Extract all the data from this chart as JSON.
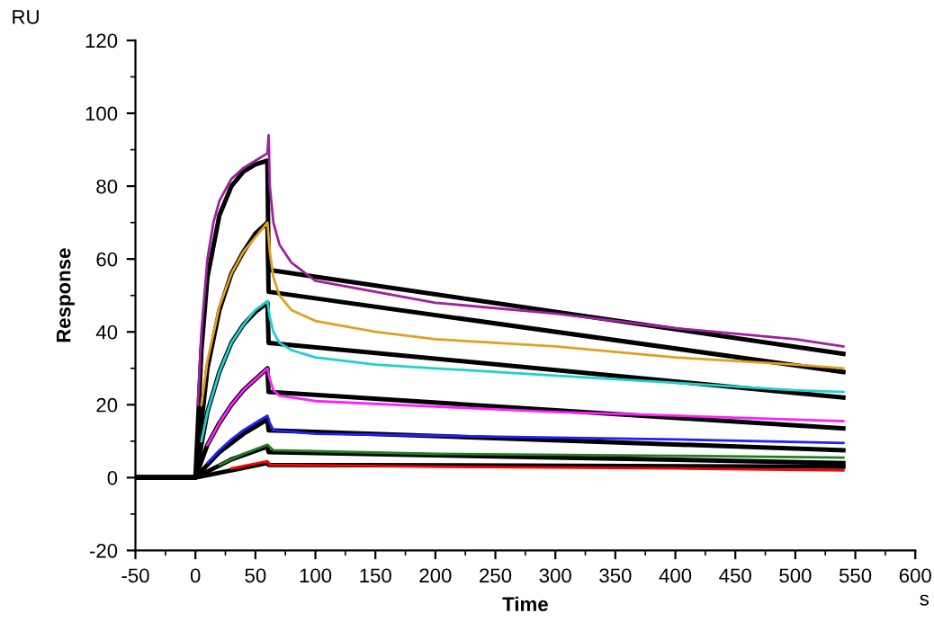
{
  "chart_data": {
    "type": "line",
    "xlabel": "Time",
    "ylabel": "Response",
    "annotations": [
      "RU",
      "s"
    ],
    "xlim": [
      -50,
      600
    ],
    "ylim": [
      -20,
      120
    ],
    "xticks": [
      -50,
      0,
      50,
      100,
      150,
      200,
      250,
      300,
      350,
      400,
      450,
      500,
      550,
      600
    ],
    "yticks": [
      -20,
      0,
      20,
      40,
      60,
      80,
      100,
      120
    ],
    "grid": false,
    "legend": false,
    "marker": "none",
    "line_style": "solid",
    "series": [
      {
        "color": "#a020a0",
        "x": [
          2,
          5,
          10,
          15,
          20,
          30,
          40,
          50,
          60,
          61,
          62,
          65,
          70,
          80,
          100,
          150,
          200,
          300,
          400,
          500,
          540
        ],
        "values": [
          20,
          40,
          60,
          70,
          76,
          82,
          85,
          87,
          89,
          94,
          80,
          70,
          64,
          59,
          54,
          51,
          48,
          45,
          41,
          38,
          36
        ]
      },
      {
        "color": "#e0a020",
        "x": [
          5,
          10,
          20,
          30,
          40,
          50,
          60,
          62,
          65,
          70,
          80,
          100,
          150,
          200,
          300,
          400,
          500,
          540
        ],
        "values": [
          20,
          32,
          47,
          56,
          62,
          66,
          70,
          62,
          55,
          50,
          46,
          43,
          40,
          38,
          36,
          33,
          31,
          30
        ]
      },
      {
        "color": "#20d0d0",
        "x": [
          5,
          10,
          20,
          30,
          40,
          50,
          60,
          62,
          65,
          70,
          80,
          100,
          150,
          200,
          300,
          400,
          500,
          540
        ],
        "values": [
          10,
          18,
          29,
          37,
          42,
          46,
          48.5,
          44,
          40,
          37,
          35,
          33,
          31,
          30,
          28,
          26,
          24,
          23.5
        ]
      },
      {
        "color": "#ff20ff",
        "x": [
          10,
          20,
          30,
          40,
          50,
          60,
          62,
          65,
          70,
          100,
          200,
          300,
          400,
          540
        ],
        "values": [
          9,
          15,
          20,
          24,
          27,
          30,
          27,
          24,
          22.5,
          21,
          19.5,
          18,
          17,
          15.5
        ]
      },
      {
        "color": "#2020ff",
        "x": [
          10,
          20,
          30,
          40,
          50,
          60,
          62,
          65,
          100,
          200,
          300,
          400,
          540
        ],
        "values": [
          4,
          7.5,
          10.5,
          13,
          15,
          17,
          15,
          13,
          12,
          11.5,
          11,
          10.5,
          9.5
        ]
      },
      {
        "color": "#208020",
        "x": [
          20,
          40,
          60,
          65,
          200,
          400,
          540
        ],
        "values": [
          3.5,
          6.5,
          9,
          7.5,
          6.5,
          6,
          5.5
        ]
      },
      {
        "color": "#ff0000",
        "x": [
          30,
          60,
          62,
          200,
          400,
          540
        ],
        "values": [
          2.5,
          4.5,
          3.5,
          3,
          2.5,
          2
        ]
      },
      {
        "color": "#000000",
        "x": [
          -50,
          0,
          5,
          10,
          20,
          30,
          40,
          50,
          60,
          61,
          540
        ],
        "values": [
          0,
          0,
          35,
          55,
          72,
          80,
          84,
          86,
          87,
          57,
          34
        ]
      },
      {
        "color": "#000000",
        "x": [
          -50,
          0,
          10,
          20,
          30,
          40,
          50,
          60,
          61,
          540
        ],
        "values": [
          0,
          0,
          30,
          46,
          56,
          62,
          67,
          70,
          51,
          29
        ]
      },
      {
        "color": "#000000",
        "x": [
          -50,
          0,
          10,
          20,
          30,
          40,
          50,
          60,
          61,
          540
        ],
        "values": [
          0,
          0,
          18,
          29,
          37,
          42,
          45.5,
          48,
          37,
          22
        ]
      },
      {
        "color": "#000000",
        "x": [
          -50,
          0,
          10,
          20,
          30,
          40,
          50,
          60,
          61,
          540
        ],
        "values": [
          0,
          0,
          9,
          15,
          20,
          24,
          27,
          30,
          23.5,
          13.5
        ]
      },
      {
        "color": "#000000",
        "x": [
          -50,
          0,
          20,
          40,
          60,
          61,
          540
        ],
        "values": [
          0,
          0,
          7,
          12,
          16,
          13,
          7.5
        ]
      },
      {
        "color": "#000000",
        "x": [
          -50,
          0,
          30,
          60,
          61,
          540
        ],
        "values": [
          0,
          0,
          5,
          8.5,
          7,
          4
        ]
      },
      {
        "color": "#000000",
        "x": [
          -50,
          0,
          60,
          61,
          540
        ],
        "values": [
          0,
          0,
          4,
          3.5,
          3
        ]
      }
    ]
  }
}
